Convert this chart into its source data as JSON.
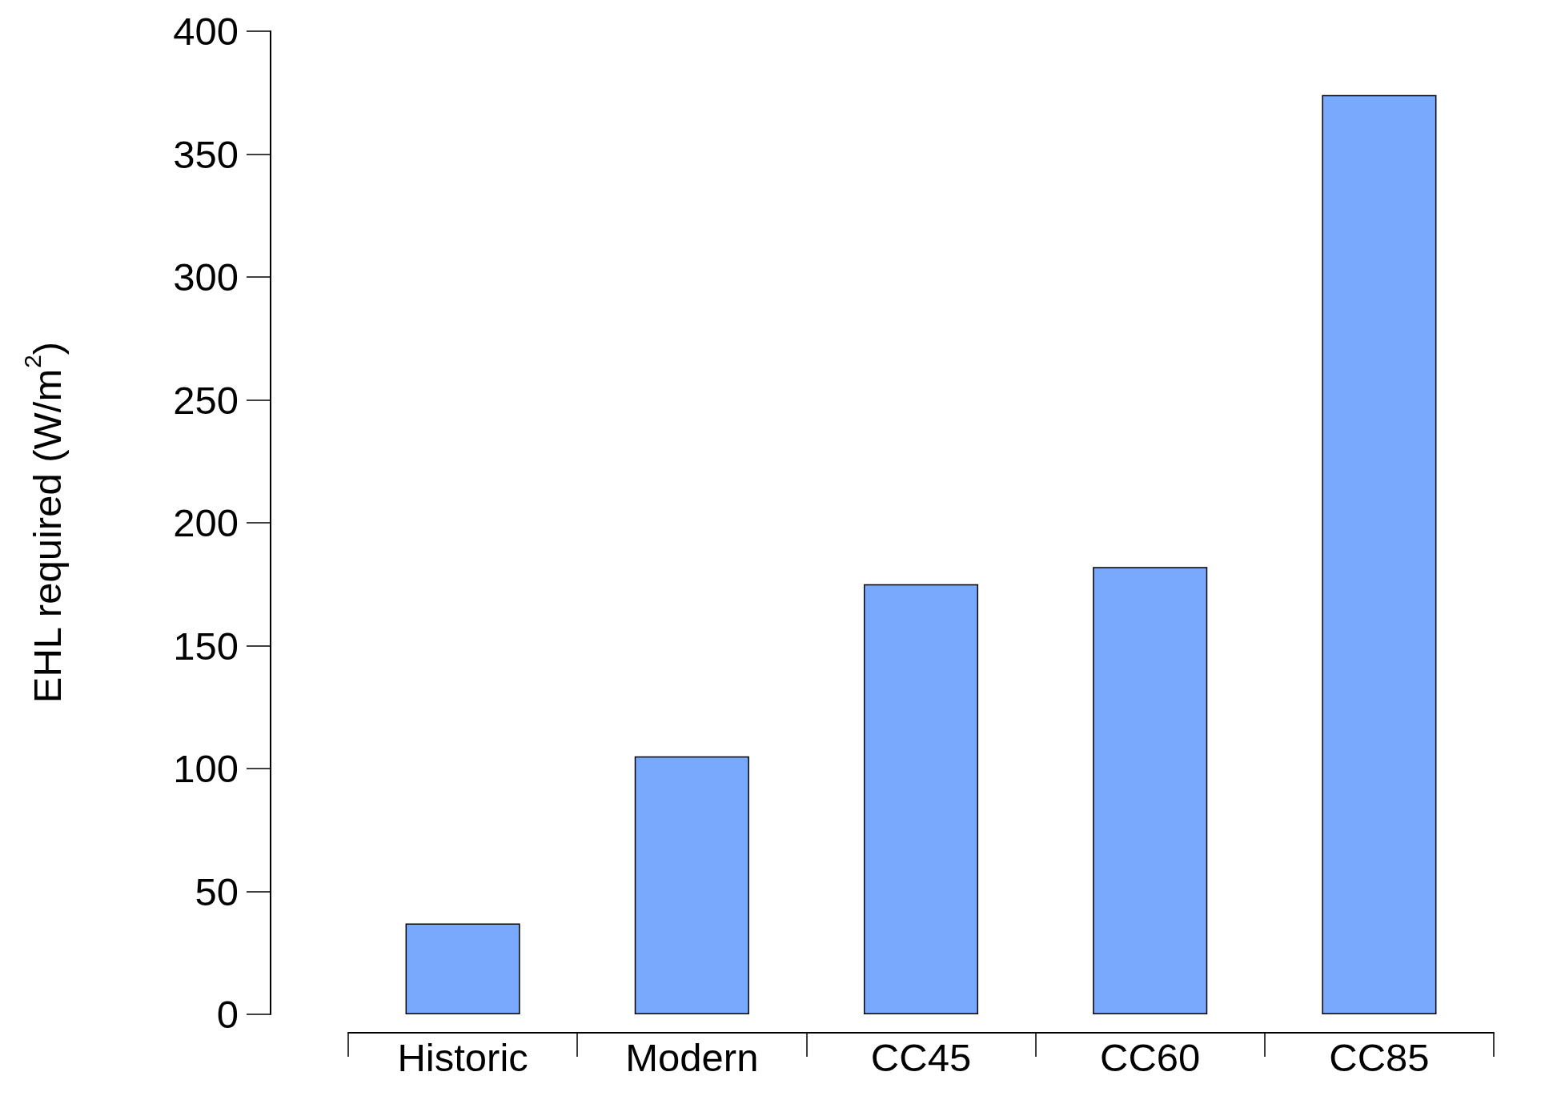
{
  "chart_data": {
    "type": "bar",
    "ylabel": "EHL required (W/m$^{2}$)",
    "categories": [
      "Historic",
      "Modern",
      "CC45",
      "CC60",
      "CC85"
    ],
    "values": [
      37,
      105,
      175,
      182,
      374
    ],
    "color": "#78a9fd",
    "ylim": [
      0,
      400
    ],
    "yticks": [
      0,
      50,
      100,
      150,
      200,
      250,
      300,
      350,
      400
    ],
    "grid": false
  }
}
